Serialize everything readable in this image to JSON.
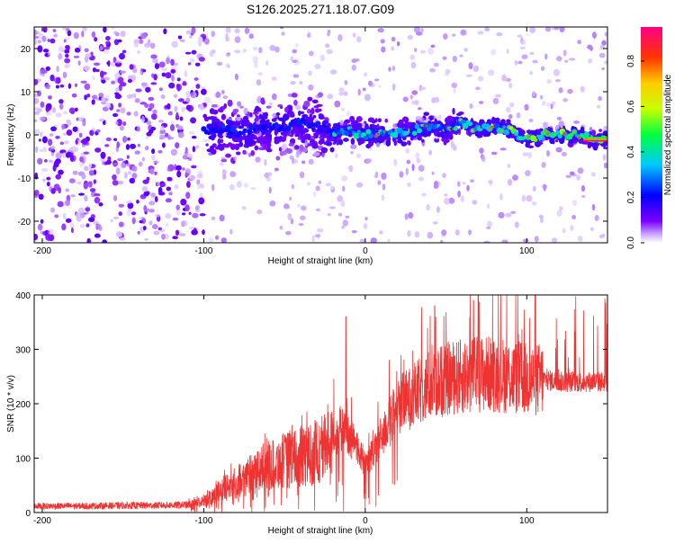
{
  "page": {
    "title": "S126.2025.271.18.07.G09"
  },
  "chart_data": [
    {
      "type": "heatmap",
      "title": "S126.2025.271.18.07.G09",
      "xlabel": "Height of straight line (km)",
      "ylabel": "Frequency (Hz)",
      "xlim": [
        -205,
        150
      ],
      "ylim": [
        -25,
        25
      ],
      "xticks": [
        -200,
        -100,
        0,
        100
      ],
      "xtick_labels": [
        "-200",
        "-100",
        "0",
        "100"
      ],
      "yticks": [
        -20,
        -10,
        0,
        10,
        20
      ],
      "ytick_labels": [
        "-20",
        "-10",
        "0",
        "10",
        "20"
      ],
      "colorbar": {
        "label": "Normalized spectral amplitude",
        "range": [
          0,
          0.95
        ],
        "ticks": [
          0.0,
          0.2,
          0.4,
          0.6,
          0.8
        ],
        "tick_labels": [
          "0.0",
          "0.2",
          "0.4",
          "0.6",
          "0.8"
        ],
        "colors": [
          "#ffffff",
          "#8800ff",
          "#0000ff",
          "#00ffff",
          "#00ff00",
          "#ffff00",
          "#ff8800",
          "#ff0000",
          "#ff0088"
        ]
      },
      "ridge": {
        "description_values": "peak frequency (Hz) vs height (km)",
        "x": [
          -100,
          -90,
          -80,
          -70,
          -60,
          -50,
          -40,
          -30,
          -20,
          -10,
          0,
          10,
          20,
          30,
          40,
          50,
          60,
          70,
          80,
          90,
          100,
          110,
          120,
          130,
          140,
          150
        ],
        "y": [
          1,
          1.5,
          0.5,
          1,
          1.5,
          2,
          3,
          2,
          0.5,
          1,
          0,
          0.5,
          0.5,
          1,
          2,
          1,
          3,
          1,
          2,
          1,
          -1,
          0,
          0,
          0,
          -1,
          -1
        ]
      }
    },
    {
      "type": "line",
      "xlabel": "Height of straight line (km)",
      "ylabel": "SNR (10 * v/v)",
      "xlim": [
        -205,
        150
      ],
      "ylim": [
        0,
        400
      ],
      "xticks": [
        -200,
        -100,
        0,
        100
      ],
      "xtick_labels": [
        "-200",
        "-100",
        "0",
        "100"
      ],
      "yticks": [
        0,
        100,
        200,
        300,
        400
      ],
      "ytick_labels": [
        "0",
        "100",
        "200",
        "300",
        "400"
      ],
      "series": [
        {
          "name": "SNR",
          "color": "#ee3333",
          "x": [
            -205,
            -190,
            -170,
            -150,
            -130,
            -110,
            -100,
            -90,
            -80,
            -70,
            -60,
            -50,
            -40,
            -30,
            -20,
            -15,
            -10,
            -5,
            0,
            5,
            10,
            15,
            20,
            30,
            40,
            50,
            60,
            70,
            80,
            90,
            100,
            110,
            120,
            130,
            140,
            150
          ],
          "y": [
            12,
            12,
            12,
            13,
            13,
            14,
            20,
            40,
            55,
            70,
            85,
            95,
            100,
            110,
            135,
            155,
            140,
            120,
            90,
            110,
            140,
            165,
            195,
            215,
            235,
            245,
            250,
            255,
            255,
            250,
            245,
            245,
            240,
            240,
            240,
            240
          ],
          "peaks": [
            {
              "x": -12,
              "y": 360
            },
            {
              "x": 43,
              "y": 380
            },
            {
              "x": 70,
              "y": 400
            },
            {
              "x": 67,
              "y": 390
            }
          ]
        }
      ]
    }
  ]
}
